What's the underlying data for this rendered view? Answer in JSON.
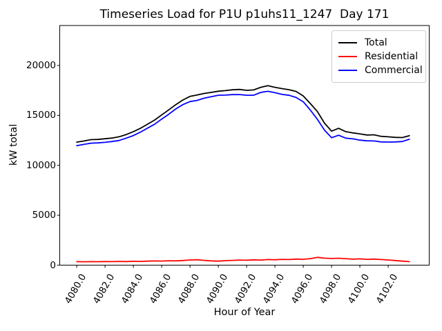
{
  "chart_data": {
    "type": "line",
    "title": "Timeseries Load for P1U p1uhs11_1247  Day 171",
    "xlabel": "Hour of Year",
    "ylabel": "kW total",
    "xlim": [
      4078.8,
      4104.9
    ],
    "ylim": [
      0,
      24000
    ],
    "grid": false,
    "legend_position": "upper right",
    "xtick_values": [
      4080,
      4082,
      4084,
      4086,
      4088,
      4090,
      4092,
      4094,
      4096,
      4098,
      4100,
      4102
    ],
    "xtick_labels": [
      "4080.0",
      "4082.0",
      "4084.0",
      "4086.0",
      "4088.0",
      "4090.0",
      "4092.0",
      "4094.0",
      "4096.0",
      "4098.0",
      "4100.0",
      "4102.0"
    ],
    "ytick_values": [
      0,
      5000,
      10000,
      15000,
      20000
    ],
    "ytick_labels": [
      "0",
      "5000",
      "10000",
      "15000",
      "20000"
    ],
    "x_start": 4080,
    "x_step": 0.5,
    "x_end": 4103.5,
    "series": [
      {
        "name": "Total",
        "color": "#000000",
        "values": [
          12320,
          12430,
          12570,
          12590,
          12660,
          12730,
          12860,
          13080,
          13370,
          13700,
          14120,
          14530,
          15040,
          15550,
          16080,
          16540,
          16900,
          17040,
          17200,
          17300,
          17420,
          17480,
          17560,
          17600,
          17510,
          17550,
          17810,
          17970,
          17810,
          17680,
          17570,
          17400,
          16950,
          16190,
          15380,
          14230,
          13420,
          13700,
          13370,
          13250,
          13150,
          13030,
          13050,
          12900,
          12850,
          12800,
          12780,
          12960
        ]
      },
      {
        "name": "Residential",
        "color": "#ff0000",
        "values": [
          350,
          340,
          355,
          345,
          360,
          350,
          370,
          360,
          390,
          375,
          400,
          420,
          410,
          440,
          430,
          460,
          520,
          540,
          480,
          430,
          400,
          450,
          480,
          510,
          490,
          530,
          510,
          560,
          540,
          580,
          560,
          610,
          590,
          650,
          780,
          700,
          660,
          690,
          650,
          600,
          630,
          580,
          610,
          560,
          520,
          460,
          400,
          350
        ]
      },
      {
        "name": "Commercial",
        "color": "#0000ff",
        "values": [
          11970,
          12090,
          12215,
          12245,
          12300,
          12380,
          12490,
          12720,
          12980,
          13325,
          13720,
          14110,
          14630,
          15110,
          15650,
          16080,
          16380,
          16500,
          16720,
          16870,
          17020,
          17030,
          17080,
          17090,
          17020,
          17020,
          17300,
          17410,
          17270,
          17100,
          17010,
          16790,
          16360,
          15540,
          14600,
          13530,
          12760,
          13010,
          12720,
          12650,
          12520,
          12450,
          12440,
          12340,
          12330,
          12340,
          12380,
          12610
        ]
      }
    ]
  }
}
